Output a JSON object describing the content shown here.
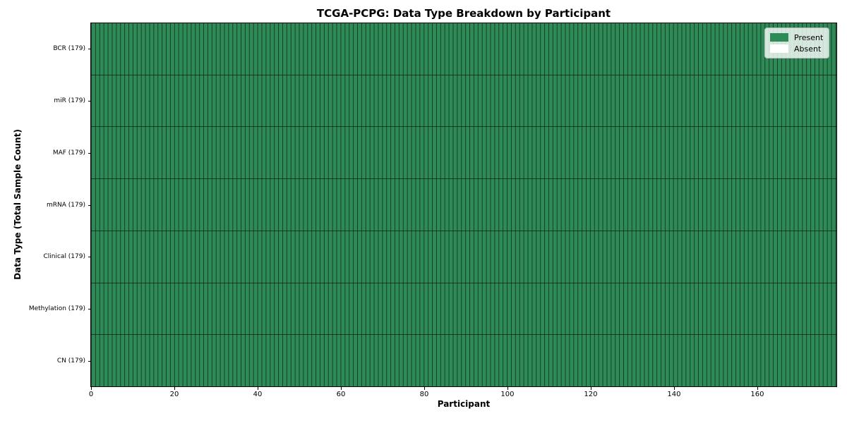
{
  "chart_data": {
    "type": "heatmap",
    "title": "TCGA-PCPG: Data Type Breakdown by Participant",
    "xlabel": "Participant",
    "ylabel": "Data Type (Total Sample Count)",
    "xlim": [
      0,
      179
    ],
    "n_participants": 179,
    "x_ticks": [
      0,
      20,
      40,
      60,
      80,
      100,
      120,
      140,
      160
    ],
    "rows": [
      {
        "label": "BCR (179)",
        "total_samples": 179,
        "present_count": 179,
        "absent_count": 0
      },
      {
        "label": "miR (179)",
        "total_samples": 179,
        "present_count": 179,
        "absent_count": 0
      },
      {
        "label": "MAF (179)",
        "total_samples": 179,
        "present_count": 179,
        "absent_count": 0
      },
      {
        "label": "mRNA (179)",
        "total_samples": 179,
        "present_count": 179,
        "absent_count": 0
      },
      {
        "label": "Clinical (179)",
        "total_samples": 179,
        "present_count": 179,
        "absent_count": 0
      },
      {
        "label": "Methylation (179)",
        "total_samples": 179,
        "present_count": 179,
        "absent_count": 0
      },
      {
        "label": "CN (179)",
        "total_samples": 179,
        "present_count": 179,
        "absent_count": 0
      }
    ],
    "legend": {
      "position": "upper right",
      "entries": [
        {
          "label": "Present",
          "color": "#2e8b57"
        },
        {
          "label": "Absent",
          "color": "#ffffff"
        }
      ]
    },
    "colors": {
      "present": "#2e8b57",
      "absent": "#ffffff",
      "cell_edge": "rgba(0,0,0,0.55)",
      "frame": "#000000"
    },
    "grid": "per-participant cell edges shown"
  }
}
